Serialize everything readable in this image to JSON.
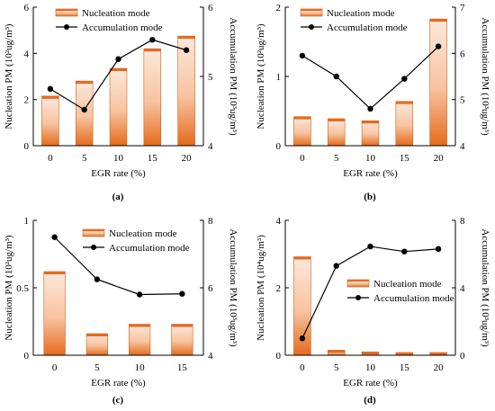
{
  "chart_data": [
    {
      "id": "a",
      "caption": "(a)",
      "type": "bar+line",
      "xlabel": "EGR rate (%)",
      "ylabel": "Nucleation PM (10²ug/m³)",
      "ylabel2": "Accumulation PM (10³ug/m³)",
      "categories": [
        "0",
        "5",
        "10",
        "15",
        "20"
      ],
      "ylim": [
        0,
        6
      ],
      "yticks": [
        "0",
        "2",
        "4",
        "6"
      ],
      "ylim2": [
        4,
        6
      ],
      "yticks2": [
        "4",
        "5",
        "6"
      ],
      "series": [
        {
          "name": "Nucleation mode",
          "kind": "bar",
          "axis": "left",
          "values": [
            2.15,
            2.8,
            3.35,
            4.2,
            4.75
          ]
        },
        {
          "name": "Accumulation mode",
          "kind": "line",
          "axis": "right",
          "values": [
            4.82,
            4.52,
            5.25,
            5.53,
            5.38
          ]
        }
      ],
      "legend": "top-left"
    },
    {
      "id": "b",
      "caption": "(b)",
      "type": "bar+line",
      "xlabel": "EGR rate (%)",
      "ylabel": "Nucleation PM (10²ug/m³)",
      "ylabel2": "Accumulation PM (10³ug/m³)",
      "categories": [
        "0",
        "5",
        "10",
        "15",
        "20"
      ],
      "ylim": [
        0,
        2
      ],
      "yticks": [
        "0",
        "1",
        "2"
      ],
      "ylim2": [
        4,
        7
      ],
      "yticks2": [
        "4",
        "5",
        "6",
        "7"
      ],
      "series": [
        {
          "name": "Nucleation mode",
          "kind": "bar",
          "axis": "left",
          "values": [
            0.42,
            0.39,
            0.36,
            0.64,
            1.83
          ]
        },
        {
          "name": "Accumulation mode",
          "kind": "line",
          "axis": "right",
          "values": [
            5.95,
            5.5,
            4.8,
            5.45,
            6.15
          ]
        }
      ],
      "legend": "top-left"
    },
    {
      "id": "c",
      "caption": "(c)",
      "type": "bar+line",
      "xlabel": "EGR rate (%)",
      "ylabel": "Nucleation PM (10²ug/m³)",
      "ylabel2": "Accumulation PM (10³ug/m³)",
      "categories": [
        "0",
        "5",
        "10",
        "15"
      ],
      "ylim": [
        0,
        1
      ],
      "yticks": [
        "0",
        "0.5",
        "1"
      ],
      "ylim2": [
        4,
        8
      ],
      "yticks2": [
        "4",
        "6",
        "8"
      ],
      "series": [
        {
          "name": "Nucleation mode",
          "kind": "bar",
          "axis": "left",
          "values": [
            0.62,
            0.16,
            0.23,
            0.23
          ]
        },
        {
          "name": "Accumulation mode",
          "kind": "line",
          "axis": "right",
          "values": [
            7.5,
            6.25,
            5.8,
            5.82
          ]
        }
      ],
      "legend": "top-right"
    },
    {
      "id": "d",
      "caption": "(d)",
      "type": "bar+line",
      "xlabel": "EGR rate (%)",
      "ylabel": "Nucleation PM (10⁴ug/m³)",
      "ylabel2": "Accumulation PM (10³ug/m³)",
      "categories": [
        "0",
        "5",
        "10",
        "15",
        "20"
      ],
      "ylim": [
        0,
        4
      ],
      "yticks": [
        "0",
        "2",
        "4"
      ],
      "ylim2": [
        0,
        8
      ],
      "yticks2": [
        "0",
        "4",
        "8"
      ],
      "series": [
        {
          "name": "Nucleation mode",
          "kind": "bar",
          "axis": "left",
          "values": [
            2.92,
            0.15,
            0.1,
            0.08,
            0.08
          ]
        },
        {
          "name": "Accumulation mode",
          "kind": "line",
          "axis": "right",
          "values": [
            1.0,
            5.3,
            6.45,
            6.15,
            6.3
          ]
        }
      ],
      "legend": "middle-right"
    }
  ],
  "colors": {
    "bar_top": "#e8691f",
    "bar_bottom": "#e46b1c",
    "bar_light": "#fde9dc",
    "bar_outline": "#cf5f1a",
    "line": "#000000",
    "axis": "#000000"
  }
}
